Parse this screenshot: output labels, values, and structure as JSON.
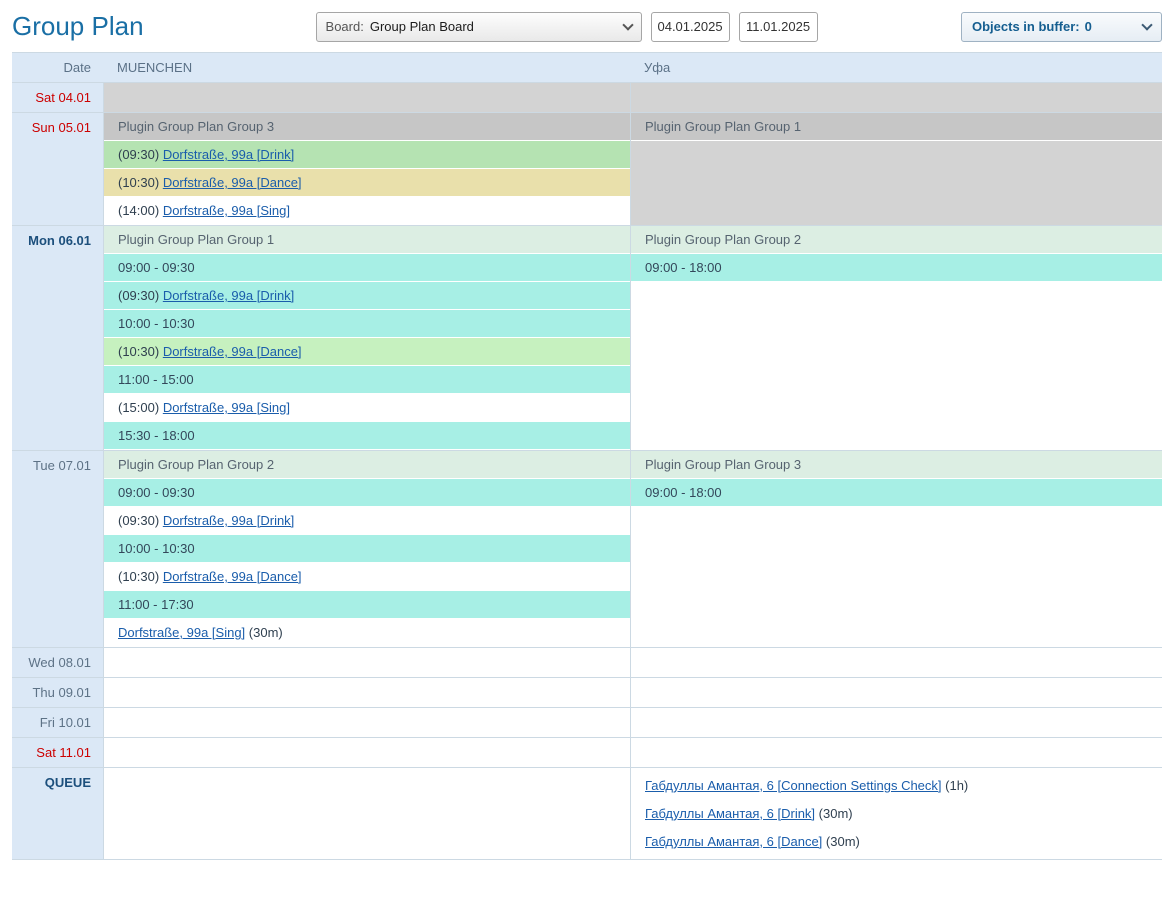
{
  "header": {
    "title": "Group Plan",
    "board": {
      "label": "Board:",
      "value": "Group Plan Board"
    },
    "date_from": "04.01.2025",
    "date_to": "11.01.2025",
    "buffer": {
      "label": "Objects in buffer:",
      "count": "0"
    }
  },
  "colors": {
    "cyan": "#a7efe5",
    "green": "#b5e3b2",
    "light_green": "#c6f1bf",
    "tan": "#e9e0ab",
    "grey": "#d3d3d3",
    "grey_dark": "#c6c6c6",
    "mint": "#dceee3",
    "white": "#ffffff"
  },
  "table": {
    "columns": [
      "Date",
      "MUENCHEN",
      "Уфа"
    ],
    "rows": [
      {
        "date": "Sat 04.01",
        "date_kind": "weekend",
        "cells": [
          {
            "fill": "grey",
            "blocks": []
          },
          {
            "fill": "grey",
            "blocks": []
          }
        ]
      },
      {
        "date": "Sun 05.01",
        "date_kind": "weekend",
        "cells": [
          {
            "fill": "white",
            "blocks": [
              {
                "t": "group",
                "bg": "grey_dark",
                "text": "Plugin Group Plan Group 3"
              },
              {
                "t": "event",
                "bg": "green",
                "pre": "(09:30) ",
                "link": "Dorfstraße, 99a [Drink]",
                "suf": ""
              },
              {
                "t": "event",
                "bg": "tan",
                "pre": "(10:30) ",
                "link": "Dorfstraße, 99a [Dance]",
                "suf": ""
              },
              {
                "t": "event",
                "bg": "white",
                "pre": "(14:00) ",
                "link": "Dorfstraße, 99a [Sing]",
                "suf": ""
              }
            ]
          },
          {
            "fill": "grey",
            "blocks": [
              {
                "t": "group",
                "bg": "grey_dark",
                "text": "Plugin Group Plan Group 1"
              }
            ]
          }
        ]
      },
      {
        "date": "Mon 06.01",
        "date_kind": "today",
        "cells": [
          {
            "fill": "white",
            "blocks": [
              {
                "t": "group",
                "bg": "mint",
                "text": "Plugin Group Plan Group 1"
              },
              {
                "t": "time",
                "bg": "cyan",
                "text": "09:00 - 09:30"
              },
              {
                "t": "event",
                "bg": "cyan",
                "pre": "(09:30) ",
                "link": "Dorfstraße, 99a [Drink]",
                "suf": ""
              },
              {
                "t": "time",
                "bg": "cyan",
                "text": "10:00 - 10:30"
              },
              {
                "t": "event",
                "bg": "light_green",
                "pre": "(10:30) ",
                "link": "Dorfstraße, 99a [Dance]",
                "suf": ""
              },
              {
                "t": "time",
                "bg": "cyan",
                "text": "11:00 - 15:00"
              },
              {
                "t": "event",
                "bg": "white",
                "pre": "(15:00) ",
                "link": "Dorfstraße, 99a [Sing]",
                "suf": ""
              },
              {
                "t": "time",
                "bg": "cyan",
                "text": "15:30 - 18:00"
              }
            ]
          },
          {
            "fill": "white",
            "blocks": [
              {
                "t": "group",
                "bg": "mint",
                "text": "Plugin Group Plan Group 2"
              },
              {
                "t": "time",
                "bg": "cyan",
                "text": "09:00 - 18:00"
              }
            ]
          }
        ]
      },
      {
        "date": "Tue 07.01",
        "date_kind": "normal",
        "cells": [
          {
            "fill": "white",
            "blocks": [
              {
                "t": "group",
                "bg": "mint",
                "text": "Plugin Group Plan Group 2"
              },
              {
                "t": "time",
                "bg": "cyan",
                "text": "09:00 - 09:30"
              },
              {
                "t": "event",
                "bg": "white",
                "pre": "(09:30) ",
                "link": "Dorfstraße, 99a [Drink]",
                "suf": ""
              },
              {
                "t": "time",
                "bg": "cyan",
                "text": "10:00 - 10:30"
              },
              {
                "t": "event",
                "bg": "white",
                "pre": "(10:30) ",
                "link": "Dorfstraße, 99a [Dance]",
                "suf": ""
              },
              {
                "t": "time",
                "bg": "cyan",
                "text": "11:00 - 17:30"
              },
              {
                "t": "event",
                "bg": "white",
                "pre": "",
                "link": "Dorfstraße, 99a [Sing]",
                "suf": " (30m)"
              }
            ]
          },
          {
            "fill": "white",
            "blocks": [
              {
                "t": "group",
                "bg": "mint",
                "text": "Plugin Group Plan Group 3"
              },
              {
                "t": "time",
                "bg": "cyan",
                "text": "09:00 - 18:00"
              }
            ]
          }
        ]
      },
      {
        "date": "Wed 08.01",
        "date_kind": "normal",
        "cells": [
          {
            "fill": "white",
            "blocks": []
          },
          {
            "fill": "white",
            "blocks": []
          }
        ]
      },
      {
        "date": "Thu 09.01",
        "date_kind": "normal",
        "cells": [
          {
            "fill": "white",
            "blocks": []
          },
          {
            "fill": "white",
            "blocks": []
          }
        ]
      },
      {
        "date": "Fri 10.01",
        "date_kind": "normal",
        "cells": [
          {
            "fill": "white",
            "blocks": []
          },
          {
            "fill": "white",
            "blocks": []
          }
        ]
      },
      {
        "date": "Sat 11.01",
        "date_kind": "weekend",
        "cells": [
          {
            "fill": "white",
            "blocks": []
          },
          {
            "fill": "white",
            "blocks": []
          }
        ]
      },
      {
        "date": "QUEUE",
        "date_kind": "queue",
        "cells": [
          {
            "fill": "white",
            "blocks": []
          },
          {
            "fill": "white",
            "blocks": [
              {
                "t": "event",
                "bg": "white",
                "pre": "",
                "link": "Габдуллы Амантая, 6 [Connection Settings Check]",
                "suf": " (1h)"
              },
              {
                "t": "event",
                "bg": "white",
                "pre": "",
                "link": "Габдуллы Амантая, 6 [Drink]",
                "suf": " (30m)"
              },
              {
                "t": "event",
                "bg": "white",
                "pre": "",
                "link": "Габдуллы Амантая, 6 [Dance]",
                "suf": " (30m)"
              }
            ]
          }
        ]
      }
    ]
  }
}
